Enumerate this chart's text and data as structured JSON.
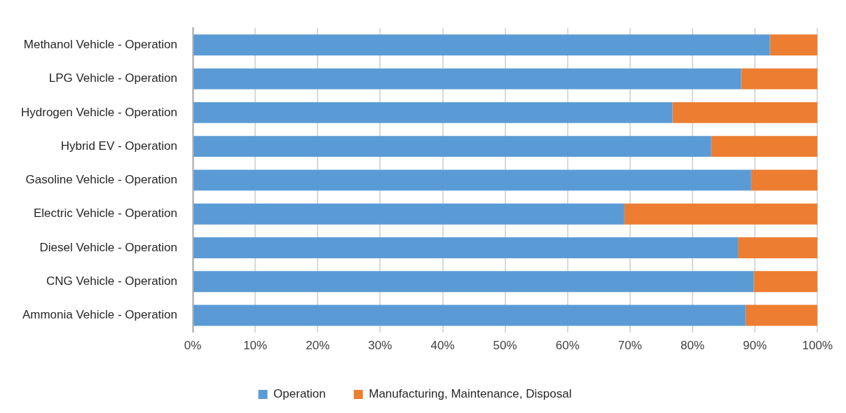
{
  "chart_data": {
    "type": "bar",
    "orientation": "horizontal",
    "stacked": true,
    "categories": [
      "Methanol Vehicle - Operation",
      "LPG Vehicle - Operation",
      "Hydrogen Vehicle - Operation",
      "Hybrid EV - Operation",
      "Gasoline Vehicle - Operation",
      "Electric Vehicle - Operation",
      "Diesel Vehicle - Operation",
      "CNG Vehicle - Operation",
      "Ammonia Vehicle - Operation"
    ],
    "series": [
      {
        "name": "Operation",
        "color": "#5b9bd5",
        "values": [
          92.4,
          87.8,
          76.8,
          83.0,
          89.4,
          69.1,
          87.3,
          89.8,
          88.5
        ]
      },
      {
        "name": "Manufacturing, Maintenance, Disposal",
        "color": "#ed7d31",
        "values": [
          7.6,
          12.2,
          23.2,
          17.0,
          10.6,
          30.9,
          12.7,
          10.2,
          11.5
        ]
      }
    ],
    "xlim": [
      0,
      100
    ],
    "xticks": [
      {
        "value": 0,
        "label": "0%"
      },
      {
        "value": 10,
        "label": "10%"
      },
      {
        "value": 20,
        "label": "20%"
      },
      {
        "value": 30,
        "label": "30%"
      },
      {
        "value": 40,
        "label": "40%"
      },
      {
        "value": 50,
        "label": "50%"
      },
      {
        "value": 60,
        "label": "60%"
      },
      {
        "value": 70,
        "label": "70%"
      },
      {
        "value": 80,
        "label": "80%"
      },
      {
        "value": 90,
        "label": "90%"
      },
      {
        "value": 100,
        "label": "100%"
      }
    ],
    "grid": "x",
    "legend": "bottom"
  }
}
